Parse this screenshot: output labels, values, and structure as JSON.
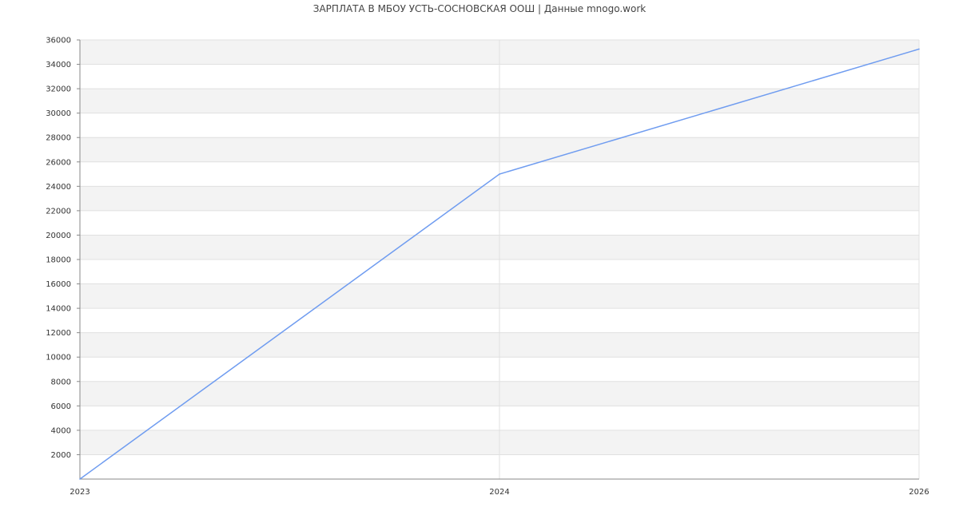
{
  "chart_data": {
    "type": "line",
    "title": "ЗАРПЛАТА В МБОУ УСТЬ-СОСНОВСКАЯ ООШ | Данные mnogo.work",
    "xlabel": "",
    "ylabel": "",
    "categories": [
      "2023",
      "2024",
      "2026"
    ],
    "series": [
      {
        "values": [
          0,
          25000,
          35250
        ]
      }
    ],
    "ylim": [
      0,
      36000
    ],
    "yticks": [
      2000,
      4000,
      6000,
      8000,
      10000,
      12000,
      14000,
      16000,
      18000,
      20000,
      22000,
      24000,
      26000,
      28000,
      30000,
      32000,
      34000,
      36000
    ],
    "grid": true,
    "legend": "none",
    "colors": {
      "line": "#6f9cf0",
      "band": "#f3f3f3",
      "grid": "#e0e0e0",
      "axis": "#888888"
    }
  }
}
